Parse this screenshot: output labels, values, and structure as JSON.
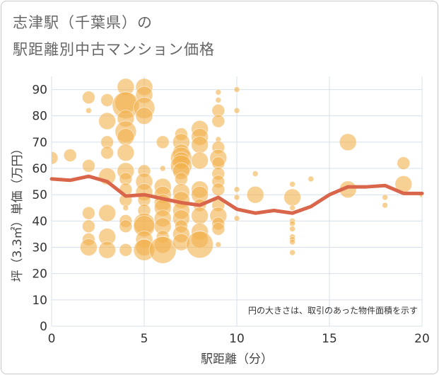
{
  "chart_data": {
    "type": "scatter",
    "title_line1": "志津駅（千葉県）の",
    "title_line2": "駅距離別中古マンション価格",
    "xlabel": "駅距離（分）",
    "ylabel": "坪（3.3㎡）単価（万円）",
    "xlim": [
      0,
      20
    ],
    "ylim": [
      0,
      95
    ],
    "xticks": [
      0,
      5,
      10,
      15,
      20
    ],
    "yticks": [
      0,
      10,
      20,
      30,
      40,
      50,
      60,
      70,
      80,
      90
    ],
    "grid": true,
    "note": "円の大きさは、取引のあった物件面積を示す",
    "bubble_color": "#f2b14c",
    "line_color": "#d9654a",
    "trend_line": {
      "x": [
        0,
        1,
        2,
        3,
        4,
        5,
        6,
        7,
        8,
        9,
        10,
        11,
        12,
        13,
        14,
        15,
        16,
        17,
        18,
        19,
        20
      ],
      "y": [
        56,
        55.5,
        57,
        55,
        49.5,
        50,
        48.5,
        47,
        46,
        49,
        44.5,
        43,
        44,
        43,
        45.5,
        50,
        53,
        53,
        53.5,
        50.5,
        50.5
      ]
    },
    "points": [
      {
        "x": 0,
        "y": 64,
        "s": 2
      },
      {
        "x": 1,
        "y": 65,
        "s": 2
      },
      {
        "x": 2,
        "y": 87,
        "s": 2
      },
      {
        "x": 2,
        "y": 82,
        "s": 1
      },
      {
        "x": 2,
        "y": 61,
        "s": 2
      },
      {
        "x": 2,
        "y": 43,
        "s": 2
      },
      {
        "x": 2,
        "y": 38,
        "s": 2
      },
      {
        "x": 2,
        "y": 33,
        "s": 2
      },
      {
        "x": 2,
        "y": 30,
        "s": 3
      },
      {
        "x": 3,
        "y": 86,
        "s": 2
      },
      {
        "x": 3,
        "y": 78,
        "s": 3
      },
      {
        "x": 3,
        "y": 70,
        "s": 2
      },
      {
        "x": 3,
        "y": 66,
        "s": 2
      },
      {
        "x": 3,
        "y": 57,
        "s": 3
      },
      {
        "x": 3,
        "y": 43,
        "s": 3
      },
      {
        "x": 3,
        "y": 34,
        "s": 3
      },
      {
        "x": 3,
        "y": 29,
        "s": 3
      },
      {
        "x": 4,
        "y": 91,
        "s": 3
      },
      {
        "x": 4,
        "y": 85,
        "s": 4
      },
      {
        "x": 4,
        "y": 84,
        "s": 5
      },
      {
        "x": 4,
        "y": 79,
        "s": 3
      },
      {
        "x": 4,
        "y": 74,
        "s": 4
      },
      {
        "x": 4,
        "y": 72,
        "s": 3
      },
      {
        "x": 4,
        "y": 66,
        "s": 3
      },
      {
        "x": 4,
        "y": 59,
        "s": 3
      },
      {
        "x": 4,
        "y": 56,
        "s": 2
      },
      {
        "x": 4,
        "y": 52,
        "s": 2
      },
      {
        "x": 4,
        "y": 48,
        "s": 2
      },
      {
        "x": 4,
        "y": 45,
        "s": 1
      },
      {
        "x": 4,
        "y": 40,
        "s": 2
      },
      {
        "x": 4,
        "y": 38,
        "s": 2
      },
      {
        "x": 4,
        "y": 29,
        "s": 2
      },
      {
        "x": 5,
        "y": 91,
        "s": 3
      },
      {
        "x": 5,
        "y": 88,
        "s": 3
      },
      {
        "x": 5,
        "y": 83,
        "s": 4
      },
      {
        "x": 5,
        "y": 80,
        "s": 3
      },
      {
        "x": 5,
        "y": 59,
        "s": 2
      },
      {
        "x": 5,
        "y": 55,
        "s": 3
      },
      {
        "x": 5,
        "y": 51,
        "s": 3
      },
      {
        "x": 5,
        "y": 48,
        "s": 2
      },
      {
        "x": 5,
        "y": 44,
        "s": 2
      },
      {
        "x": 5,
        "y": 39,
        "s": 4
      },
      {
        "x": 5,
        "y": 38,
        "s": 4
      },
      {
        "x": 5,
        "y": 33,
        "s": 3
      },
      {
        "x": 5,
        "y": 30,
        "s": 3
      },
      {
        "x": 5,
        "y": 29,
        "s": 4
      },
      {
        "x": 6,
        "y": 70,
        "s": 2
      },
      {
        "x": 6,
        "y": 60,
        "s": 1
      },
      {
        "x": 6,
        "y": 53,
        "s": 3
      },
      {
        "x": 6,
        "y": 50,
        "s": 3
      },
      {
        "x": 6,
        "y": 47,
        "s": 3
      },
      {
        "x": 6,
        "y": 45,
        "s": 3
      },
      {
        "x": 6,
        "y": 41,
        "s": 3
      },
      {
        "x": 6,
        "y": 38,
        "s": 3
      },
      {
        "x": 6,
        "y": 34,
        "s": 2
      },
      {
        "x": 6,
        "y": 31,
        "s": 3
      },
      {
        "x": 6,
        "y": 29,
        "s": 5
      },
      {
        "x": 7,
        "y": 73,
        "s": 2
      },
      {
        "x": 7,
        "y": 70,
        "s": 3
      },
      {
        "x": 7,
        "y": 66,
        "s": 3
      },
      {
        "x": 7,
        "y": 64,
        "s": 4
      },
      {
        "x": 7,
        "y": 63,
        "s": 3
      },
      {
        "x": 7,
        "y": 61,
        "s": 4
      },
      {
        "x": 7,
        "y": 59,
        "s": 3
      },
      {
        "x": 7,
        "y": 56,
        "s": 2
      },
      {
        "x": 7,
        "y": 51,
        "s": 3
      },
      {
        "x": 7,
        "y": 48,
        "s": 3
      },
      {
        "x": 7,
        "y": 44,
        "s": 3
      },
      {
        "x": 7,
        "y": 41,
        "s": 3
      },
      {
        "x": 7,
        "y": 38,
        "s": 2
      },
      {
        "x": 7,
        "y": 35,
        "s": 3
      },
      {
        "x": 7,
        "y": 32,
        "s": 3
      },
      {
        "x": 8,
        "y": 75,
        "s": 3
      },
      {
        "x": 8,
        "y": 72,
        "s": 3
      },
      {
        "x": 8,
        "y": 69,
        "s": 3
      },
      {
        "x": 8,
        "y": 63,
        "s": 3
      },
      {
        "x": 8,
        "y": 52,
        "s": 3
      },
      {
        "x": 8,
        "y": 50,
        "s": 3
      },
      {
        "x": 8,
        "y": 46,
        "s": 2
      },
      {
        "x": 8,
        "y": 42,
        "s": 3
      },
      {
        "x": 8,
        "y": 36,
        "s": 3
      },
      {
        "x": 8,
        "y": 33,
        "s": 3
      },
      {
        "x": 8,
        "y": 31,
        "s": 5
      },
      {
        "x": 9,
        "y": 89,
        "s": 1
      },
      {
        "x": 9,
        "y": 86,
        "s": 1
      },
      {
        "x": 9,
        "y": 82,
        "s": 2
      },
      {
        "x": 9,
        "y": 78,
        "s": 2
      },
      {
        "x": 9,
        "y": 71,
        "s": 1
      },
      {
        "x": 9,
        "y": 68,
        "s": 2
      },
      {
        "x": 9,
        "y": 64,
        "s": 3
      },
      {
        "x": 9,
        "y": 62,
        "s": 2
      },
      {
        "x": 9,
        "y": 58,
        "s": 2
      },
      {
        "x": 9,
        "y": 55,
        "s": 2
      },
      {
        "x": 9,
        "y": 52,
        "s": 2
      },
      {
        "x": 9,
        "y": 46,
        "s": 2
      },
      {
        "x": 9,
        "y": 42,
        "s": 3
      },
      {
        "x": 9,
        "y": 39,
        "s": 2
      },
      {
        "x": 9,
        "y": 37,
        "s": 2
      },
      {
        "x": 9,
        "y": 31,
        "s": 1
      },
      {
        "x": 10,
        "y": 90,
        "s": 1
      },
      {
        "x": 10,
        "y": 82,
        "s": 1
      },
      {
        "x": 10,
        "y": 52,
        "s": 1
      },
      {
        "x": 10,
        "y": 49,
        "s": 1
      },
      {
        "x": 10,
        "y": 41,
        "s": 1
      },
      {
        "x": 11,
        "y": 58,
        "s": 1
      },
      {
        "x": 11,
        "y": 50,
        "s": 3
      },
      {
        "x": 13,
        "y": 54,
        "s": 1
      },
      {
        "x": 13,
        "y": 49,
        "s": 3
      },
      {
        "x": 13,
        "y": 45,
        "s": 1
      },
      {
        "x": 13,
        "y": 40,
        "s": 1
      },
      {
        "x": 13,
        "y": 39,
        "s": 1
      },
      {
        "x": 13,
        "y": 37,
        "s": 1
      },
      {
        "x": 13,
        "y": 34,
        "s": 1
      },
      {
        "x": 13,
        "y": 33,
        "s": 1
      },
      {
        "x": 13,
        "y": 32,
        "s": 1
      },
      {
        "x": 13,
        "y": 28,
        "s": 1
      },
      {
        "x": 14,
        "y": 56,
        "s": 1
      },
      {
        "x": 16,
        "y": 70,
        "s": 3
      },
      {
        "x": 16,
        "y": 52,
        "s": 3
      },
      {
        "x": 18,
        "y": 49,
        "s": 1
      },
      {
        "x": 18,
        "y": 46,
        "s": 1
      },
      {
        "x": 19,
        "y": 62,
        "s": 2
      },
      {
        "x": 19,
        "y": 54,
        "s": 3
      },
      {
        "x": 20,
        "y": 50,
        "s": 1
      }
    ]
  }
}
